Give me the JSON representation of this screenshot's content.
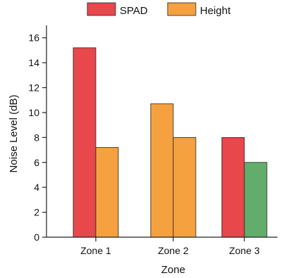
{
  "chart_data": {
    "type": "bar",
    "title": "",
    "xlabel": "Zone",
    "ylabel": "Noise Level (dB)",
    "ylim": [
      0,
      17
    ],
    "yticks": [
      0,
      2,
      4,
      6,
      8,
      10,
      12,
      14,
      16
    ],
    "grid": false,
    "legend_position": "top-center",
    "categories": [
      "Zone 1",
      "Zone 2",
      "Zone 3"
    ],
    "legend": [
      {
        "label": "SPAD",
        "color": "#e8474c"
      },
      {
        "label": "Height",
        "color": "#f5a140"
      }
    ],
    "bars": [
      {
        "category": "Zone 1",
        "value": 15.2,
        "color": "#e8474c"
      },
      {
        "category": "Zone 1",
        "value": 7.2,
        "color": "#f5a140"
      },
      {
        "category": "Zone 2",
        "value": 10.7,
        "color": "#f5a140"
      },
      {
        "category": "Zone 2",
        "value": 8.0,
        "color": "#f5a140"
      },
      {
        "category": "Zone 3",
        "value": 8.0,
        "color": "#e8474c"
      },
      {
        "category": "Zone 3",
        "value": 6.0,
        "color": "#62ad6c"
      }
    ]
  }
}
